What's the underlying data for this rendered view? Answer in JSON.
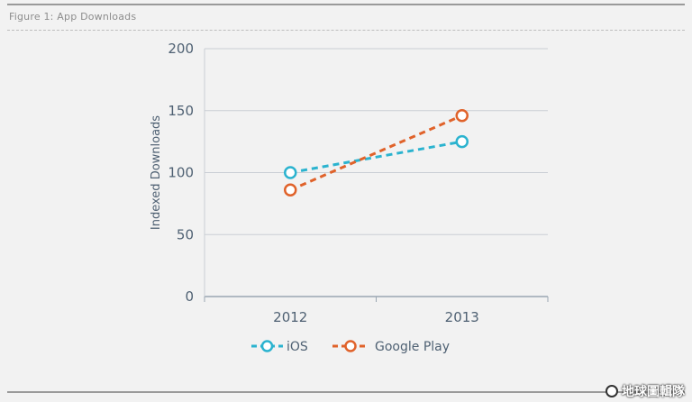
{
  "figure": {
    "title": "Figure 1: App Downloads"
  },
  "watermark": {
    "text": "地球圖輯隊",
    "icon": "globe-logo-icon"
  },
  "chart_data": {
    "type": "line",
    "title": "",
    "categories": [
      "2012",
      "2013"
    ],
    "xlabel": "",
    "ylabel": "Indexed Downloads",
    "ylim": [
      0,
      200
    ],
    "yticks": [
      0,
      50,
      100,
      150,
      200
    ],
    "grid": true,
    "legend_position": "bottom",
    "series": [
      {
        "name": "iOS",
        "values": [
          100,
          125
        ],
        "color": "#2bb3cf",
        "style": "dashed",
        "marker": "open-circle"
      },
      {
        "name": "Google Play",
        "values": [
          86,
          146
        ],
        "color": "#e0622a",
        "style": "dashed",
        "marker": "open-circle"
      }
    ]
  }
}
